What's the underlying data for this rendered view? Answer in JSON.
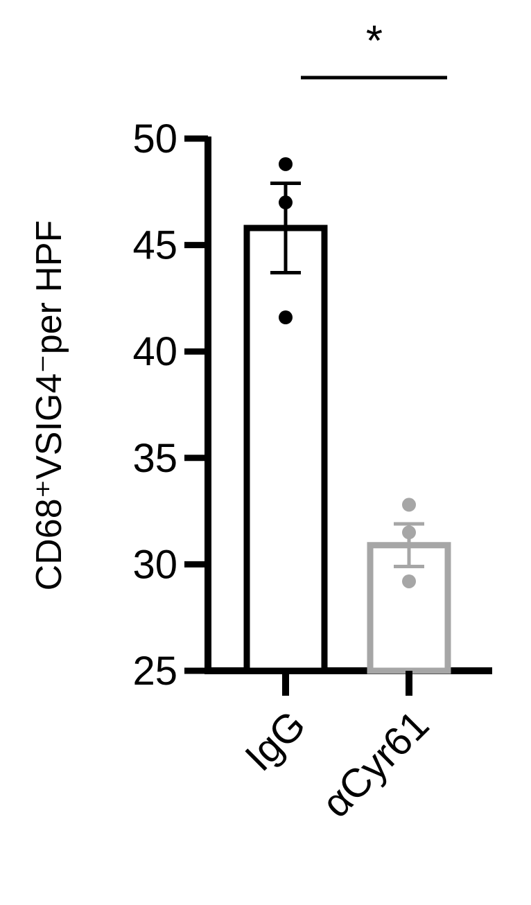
{
  "chart_data": {
    "type": "bar",
    "title": "",
    "xlabel": "",
    "ylabel": "CD68⁺VSIG4⁻per HPF",
    "ylim": [
      25,
      50
    ],
    "yticks": [
      25,
      30,
      35,
      40,
      45,
      50
    ],
    "grid": false,
    "categories": [
      "IgG",
      "αCyr61"
    ],
    "values": [
      45.8,
      30.9
    ],
    "errors": [
      2.1,
      1.0
    ],
    "points": [
      [
        48.8,
        47.0,
        41.6
      ],
      [
        32.8,
        31.5,
        29.2
      ]
    ],
    "colors": [
      "#000000",
      "#a6a6a6"
    ],
    "significance": {
      "label": "*",
      "between": [
        "IgG",
        "αCyr61"
      ]
    }
  }
}
